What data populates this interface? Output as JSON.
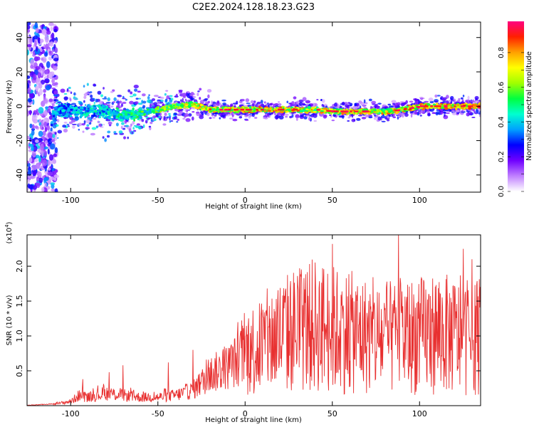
{
  "title": "C2E2.2024.128.18.23.G23",
  "chart_data": [
    {
      "type": "heatmap",
      "title": "C2E2.2024.128.18.23.G23",
      "xlabel": "Height of straight line (km)",
      "ylabel": "Frequency (Hz)",
      "xlim": [
        -125,
        135
      ],
      "ylim": [
        -50,
        49
      ],
      "x_ticks": [
        -100,
        -50,
        0,
        50,
        100
      ],
      "y_ticks": [
        -40,
        -20,
        0,
        20,
        40
      ],
      "colorbar": {
        "label": "Normalized spectral amplitude",
        "range": [
          0,
          0.98
        ],
        "ticks": [
          0.0,
          0.2,
          0.4,
          0.6,
          0.8
        ],
        "colors": [
          "#ffffff",
          "#c080ff",
          "#7000ff",
          "#0000ff",
          "#00a0ff",
          "#00ffd0",
          "#00ff40",
          "#a0ff00",
          "#ffff00",
          "#ffa000",
          "#ff2000",
          "#ff0080"
        ]
      },
      "ridge": {
        "x": [
          -110,
          -100,
          -90,
          -80,
          -70,
          -60,
          -50,
          -40,
          -30,
          -20,
          -10,
          0,
          10,
          20,
          30,
          40,
          50,
          60,
          70,
          80,
          90,
          100,
          110,
          120,
          130
        ],
        "frequency": [
          -3,
          -2,
          -3,
          -3,
          -6,
          -4,
          -2,
          0,
          1,
          -2,
          -2,
          -2,
          -2,
          -2,
          -2,
          -2,
          -3,
          -3,
          -3,
          -3,
          -2,
          0,
          0,
          0,
          0
        ],
        "peak_amplitude": [
          0.45,
          0.45,
          0.5,
          0.5,
          0.55,
          0.6,
          0.65,
          0.75,
          0.85,
          0.88,
          0.88,
          0.88,
          0.88,
          0.9,
          0.88,
          0.85,
          0.85,
          0.85,
          0.85,
          0.85,
          0.88,
          0.9,
          0.9,
          0.92,
          0.95
        ]
      }
    },
    {
      "type": "line",
      "xlabel": "Height of straight line (km)",
      "ylabel": "SNR (10 * v/v)",
      "y_scale_label": "(x10",
      "y_scale_exponent": "4",
      "xlim": [
        -125,
        135
      ],
      "ylim": [
        0,
        2.45
      ],
      "x_ticks": [
        -100,
        -50,
        0,
        50,
        100
      ],
      "y_ticks": [
        0.5,
        1.0,
        1.5,
        2.0
      ],
      "line_color": "#e83030",
      "trend": {
        "x": [
          -125,
          -110,
          -100,
          -95,
          -90,
          -80,
          -70,
          -60,
          -50,
          -40,
          -30,
          -20,
          -10,
          0,
          10,
          20,
          30,
          40,
          50,
          60,
          70,
          80,
          90,
          100,
          110,
          120,
          130,
          135
        ],
        "y": [
          0.0,
          0.02,
          0.06,
          0.15,
          0.12,
          0.18,
          0.15,
          0.12,
          0.12,
          0.15,
          0.22,
          0.45,
          0.55,
          0.75,
          0.88,
          1.0,
          1.1,
          1.15,
          1.1,
          1.05,
          1.0,
          0.95,
          1.0,
          1.0,
          1.05,
          1.0,
          0.95,
          1.05
        ]
      },
      "peaks": [
        {
          "x": -93,
          "y": 0.38
        },
        {
          "x": -78,
          "y": 0.48
        },
        {
          "x": -70,
          "y": 0.58
        },
        {
          "x": -44,
          "y": 0.62
        },
        {
          "x": -30,
          "y": 0.8
        },
        {
          "x": 50,
          "y": 2.32
        },
        {
          "x": 88,
          "y": 2.45
        },
        {
          "x": 125,
          "y": 2.25
        },
        {
          "x": 130,
          "y": 2.1
        }
      ]
    }
  ]
}
